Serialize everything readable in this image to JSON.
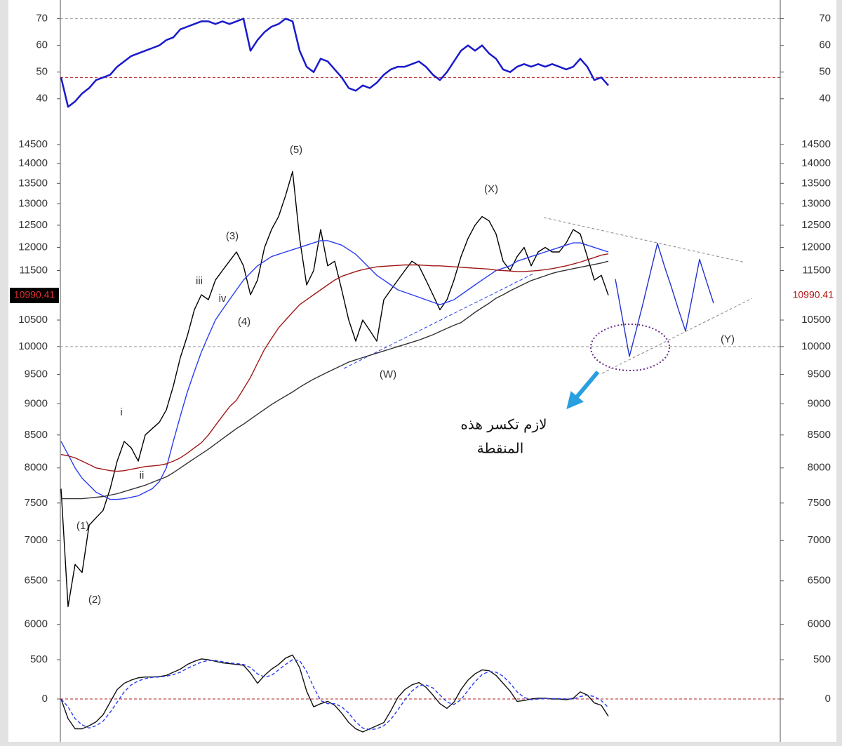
{
  "chart_data": [
    {
      "type": "line",
      "series": [
        {
          "color": "#1a1acc",
          "values": [
            48,
            37,
            39,
            42,
            44,
            47,
            48,
            49,
            52,
            54,
            56,
            57,
            58,
            59,
            60,
            62,
            63,
            66,
            67,
            68,
            69,
            69,
            68,
            69,
            68,
            69,
            70,
            58,
            62,
            65,
            67,
            68,
            70,
            69,
            58,
            52,
            50,
            55,
            54,
            51,
            48,
            44,
            43,
            45,
            44,
            46,
            49,
            51,
            52,
            52,
            53,
            54,
            52,
            49,
            47,
            50,
            54,
            58,
            60,
            58,
            60,
            57,
            55,
            51,
            50,
            52,
            53,
            52,
            53,
            52,
            53,
            52,
            51,
            52,
            55,
            52,
            47,
            48,
            45
          ]
        }
      ],
      "ylim": [
        31,
        77
      ],
      "yticks": [
        40,
        50,
        60,
        70
      ],
      "reference_lines": [
        {
          "value": 70,
          "color": "#999999"
        },
        {
          "value": 48,
          "color": "#b22222"
        }
      ]
    },
    {
      "type": "line",
      "log_scale": true,
      "series": [
        {
          "color": "#000000",
          "values": [
            7700,
            6200,
            6700,
            6600,
            7200,
            7300,
            7400,
            7700,
            8100,
            8400,
            8300,
            8100,
            8500,
            8600,
            8700,
            8900,
            9300,
            9800,
            10200,
            10700,
            11000,
            10900,
            11300,
            11500,
            11700,
            11900,
            11600,
            11000,
            11300,
            12000,
            12400,
            12700,
            13200,
            13800,
            12200,
            11200,
            11500,
            12400,
            11600,
            11700,
            11100,
            10500,
            10100,
            10500,
            10300,
            10100,
            10900,
            11100,
            11300,
            11500,
            11700,
            11600,
            11300,
            11000,
            10700,
            10900,
            11300,
            11800,
            12200,
            12500,
            12700,
            12600,
            12300,
            11700,
            11500,
            11800,
            12000,
            11600,
            11900,
            12000,
            11900,
            11900,
            12100,
            12400,
            12300,
            11800,
            11300,
            11400,
            10990.41,
            null,
            null,
            null,
            null,
            null,
            null,
            null,
            null,
            null,
            null,
            null,
            null,
            null,
            null,
            null
          ]
        },
        {
          "color": "#2a3cf0",
          "values": [
            8400,
            8200,
            8000,
            7850,
            7750,
            7650,
            7600,
            7550,
            7550,
            7560,
            7580,
            7600,
            7650,
            7700,
            7800,
            8000,
            8400,
            8800,
            9200,
            9550,
            9900,
            10200,
            10500,
            10700,
            10900,
            11100,
            11300,
            11450,
            11600,
            11700,
            11800,
            11850,
            11900,
            11950,
            12000,
            12050,
            12100,
            12150,
            12150,
            12100,
            12050,
            11950,
            11850,
            11700,
            11550,
            11400,
            11300,
            11200,
            11100,
            11050,
            11000,
            10950,
            10900,
            10850,
            10800,
            10850,
            10900,
            11000,
            11100,
            11200,
            11300,
            11400,
            11500,
            11550,
            11600,
            11700,
            11750,
            11800,
            11850,
            11900,
            11950,
            12000,
            12050,
            12100,
            12100,
            12050,
            12000,
            11950,
            11900,
            null,
            null,
            null,
            null,
            null,
            null,
            null,
            null,
            null,
            null,
            null,
            null,
            null,
            null,
            null
          ]
        },
        {
          "color": "#a01818",
          "values": [
            8200,
            8180,
            8150,
            8100,
            8050,
            8000,
            7980,
            7960,
            7950,
            7960,
            7980,
            8000,
            8020,
            8030,
            8040,
            8060,
            8100,
            8150,
            8220,
            8300,
            8380,
            8500,
            8650,
            8800,
            8950,
            9060,
            9250,
            9450,
            9700,
            9950,
            10150,
            10350,
            10500,
            10650,
            10800,
            10900,
            11000,
            11100,
            11200,
            11300,
            11380,
            11430,
            11480,
            11520,
            11550,
            11580,
            11590,
            11600,
            11610,
            11620,
            11620,
            11620,
            11610,
            11600,
            11600,
            11590,
            11580,
            11570,
            11560,
            11550,
            11540,
            11530,
            11510,
            11500,
            11490,
            11480,
            11480,
            11490,
            11500,
            11520,
            11540,
            11570,
            11600,
            11640,
            11680,
            11730,
            11780,
            11830,
            11860,
            null,
            null,
            null,
            null,
            null,
            null,
            null,
            null,
            null,
            null,
            null,
            null,
            null,
            null,
            null
          ]
        },
        {
          "color": "#333333",
          "values": [
            7560,
            7560,
            7560,
            7560,
            7570,
            7580,
            7590,
            7610,
            7630,
            7660,
            7690,
            7720,
            7750,
            7790,
            7830,
            7870,
            7930,
            8000,
            8070,
            8140,
            8210,
            8280,
            8360,
            8440,
            8520,
            8600,
            8670,
            8750,
            8830,
            8910,
            8990,
            9060,
            9130,
            9200,
            9280,
            9350,
            9420,
            9480,
            9540,
            9600,
            9660,
            9720,
            9760,
            9800,
            9840,
            9880,
            9920,
            9960,
            10000,
            10040,
            10080,
            10120,
            10170,
            10220,
            10280,
            10340,
            10400,
            10450,
            10550,
            10650,
            10740,
            10830,
            10930,
            11000,
            11080,
            11150,
            11220,
            11290,
            11340,
            11390,
            11440,
            11480,
            11510,
            11540,
            11570,
            11600,
            11630,
            11660,
            11700,
            null,
            null,
            null,
            null,
            null,
            null,
            null,
            null,
            null,
            null,
            null,
            null,
            null,
            null,
            null
          ]
        },
        {
          "color": "#2233cc",
          "values": [
            null,
            null,
            null,
            null,
            null,
            null,
            null,
            null,
            null,
            null,
            null,
            null,
            null,
            null,
            null,
            null,
            null,
            null,
            null,
            null,
            null,
            null,
            null,
            null,
            null,
            null,
            null,
            null,
            null,
            null,
            null,
            null,
            null,
            null,
            null,
            null,
            null,
            null,
            null,
            null,
            null,
            null,
            null,
            null,
            null,
            null,
            null,
            null,
            null,
            null,
            null,
            null,
            null,
            null,
            null,
            null,
            null,
            null,
            null,
            null,
            null,
            null,
            null,
            null,
            null,
            null,
            null,
            null,
            null,
            null,
            null,
            null,
            null,
            null,
            null,
            null,
            null,
            null,
            null,
            11320,
            10540,
            9820,
            10320,
            10860,
            11460,
            12090,
            11590,
            11150,
            10700,
            10290,
            10990,
            11740,
            11270,
            10830
          ]
        }
      ],
      "ylim": [
        5770,
        15090
      ],
      "yticks": [
        6000,
        6500,
        7000,
        7500,
        8000,
        8500,
        9000,
        9500,
        10000,
        10500,
        11500,
        12000,
        12500,
        13000,
        13500,
        14000,
        14500
      ],
      "reference_lines": [
        {
          "value": 10000,
          "color": "#999999"
        }
      ],
      "annotations": [
        "(1)",
        "(2)",
        "i",
        "ii",
        "iii",
        "iv",
        "(3)",
        "(4)",
        "(5)",
        "(W)",
        "(X)",
        "(Y)",
        "لازم تكسر هذه",
        "المنقطة"
      ]
    },
    {
      "type": "line",
      "series": [
        {
          "color": "#111111",
          "values": [
            0,
            -250,
            -380,
            -380,
            -340,
            -290,
            -200,
            -40,
            120,
            200,
            240,
            270,
            280,
            280,
            285,
            300,
            340,
            380,
            440,
            480,
            510,
            500,
            480,
            460,
            450,
            440,
            430,
            330,
            200,
            300,
            380,
            440,
            520,
            560,
            400,
            100,
            -100,
            -60,
            -30,
            -80,
            -180,
            -300,
            -380,
            -420,
            -380,
            -340,
            -300,
            -150,
            20,
            120,
            180,
            210,
            150,
            50,
            -60,
            -120,
            -40,
            120,
            240,
            320,
            370,
            360,
            300,
            200,
            100,
            -30,
            -20,
            0,
            10,
            10,
            0,
            0,
            -10,
            10,
            90,
            50,
            -50,
            -80,
            -220
          ]
        },
        {
          "color": "#2a3cf0",
          "dashed": true,
          "values": [
            0,
            -100,
            -250,
            -330,
            -370,
            -340,
            -280,
            -170,
            -40,
            90,
            180,
            230,
            260,
            275,
            280,
            290,
            310,
            340,
            390,
            430,
            470,
            490,
            490,
            475,
            460,
            450,
            440,
            400,
            320,
            280,
            300,
            370,
            440,
            500,
            490,
            350,
            150,
            -20,
            -60,
            -60,
            -100,
            -180,
            -290,
            -370,
            -390,
            -380,
            -340,
            -260,
            -140,
            -10,
            100,
            170,
            180,
            140,
            50,
            -40,
            -70,
            -10,
            110,
            220,
            310,
            350,
            340,
            290,
            200,
            90,
            20,
            -10,
            0,
            5,
            5,
            5,
            0,
            0,
            30,
            50,
            30,
            -20,
            -110
          ]
        }
      ],
      "ylim": [
        -527,
        679
      ],
      "yticks": [
        0,
        500
      ],
      "reference_lines": [
        {
          "value": 0,
          "color": "#b22222"
        }
      ]
    }
  ]
}
